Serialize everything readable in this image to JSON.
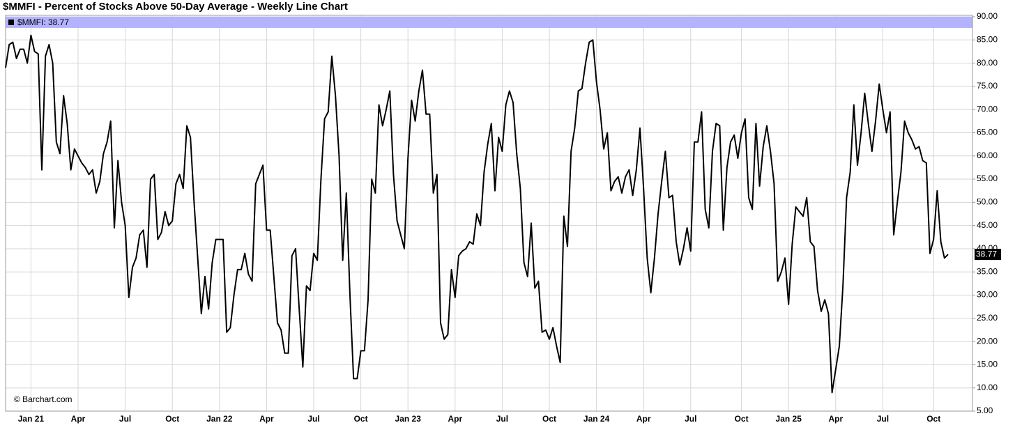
{
  "chart_data": {
    "type": "line",
    "title": "$MMFI - Percent of Stocks Above 50-Day Average - Weekly Line Chart",
    "legend": "$MMFI: 38.77",
    "copyright": "© Barchart.com",
    "categories": [
      null,
      null,
      null,
      null,
      null,
      null,
      null,
      "Jan 21",
      null,
      null,
      null,
      null,
      null,
      null,
      null,
      null,
      null,
      null,
      null,
      null,
      "Apr",
      null,
      null,
      null,
      null,
      null,
      null,
      null,
      null,
      null,
      null,
      null,
      null,
      "Jul",
      null,
      null,
      null,
      null,
      null,
      null,
      null,
      null,
      null,
      null,
      null,
      null,
      "Oct",
      null,
      null,
      null,
      null,
      null,
      null,
      null,
      null,
      null,
      null,
      null,
      null,
      "Jan 22",
      null,
      null,
      null,
      null,
      null,
      null,
      null,
      null,
      null,
      null,
      null,
      null,
      "Apr",
      null,
      null,
      null,
      null,
      null,
      null,
      null,
      null,
      null,
      null,
      null,
      null,
      "Jul",
      null,
      null,
      null,
      null,
      null,
      null,
      null,
      null,
      null,
      null,
      null,
      null,
      "Oct",
      null,
      null,
      null,
      null,
      null,
      null,
      null,
      null,
      null,
      null,
      null,
      null,
      "Jan 23",
      null,
      null,
      null,
      null,
      null,
      null,
      null,
      null,
      null,
      null,
      null,
      null,
      "Apr",
      null,
      null,
      null,
      null,
      null,
      null,
      null,
      null,
      null,
      null,
      null,
      null,
      "Jul",
      null,
      null,
      null,
      null,
      null,
      null,
      null,
      null,
      null,
      null,
      null,
      null,
      "Oct",
      null,
      null,
      null,
      null,
      null,
      null,
      null,
      null,
      null,
      null,
      null,
      null,
      "Jan 24",
      null,
      null,
      null,
      null,
      null,
      null,
      null,
      null,
      null,
      null,
      null,
      null,
      "Apr",
      null,
      null,
      null,
      null,
      null,
      null,
      null,
      null,
      null,
      null,
      null,
      null,
      "Jul",
      null,
      null,
      null,
      null,
      null,
      null,
      null,
      null,
      null,
      null,
      null,
      null,
      null,
      "Oct",
      null,
      null,
      null,
      null,
      null,
      null,
      null,
      null,
      null,
      null,
      null,
      null,
      "Jan 25",
      null,
      null,
      null,
      null,
      null,
      null,
      null,
      null,
      null,
      null,
      null,
      null,
      "Apr",
      null,
      null,
      null,
      null,
      null,
      null,
      null,
      null,
      null,
      null,
      null,
      null,
      "Jul",
      null,
      null,
      null,
      null,
      null,
      null,
      null,
      null,
      null,
      null,
      null,
      null,
      null,
      "Oct",
      null,
      null,
      null,
      null
    ],
    "series": [
      {
        "name": "$MMFI",
        "color": "#000000",
        "values": [
          79,
          84,
          84.5,
          81,
          83,
          83,
          80,
          86,
          82.5,
          82,
          57,
          81.5,
          84,
          80,
          63,
          60.5,
          73,
          67,
          57,
          61.5,
          60,
          58.5,
          57.5,
          56,
          57,
          52,
          54.5,
          60.5,
          63,
          67.5,
          44.5,
          59,
          50,
          45,
          29.5,
          36,
          38,
          43,
          44,
          36,
          55,
          56,
          42,
          43.5,
          48,
          45,
          46,
          54,
          56,
          53,
          66.5,
          64,
          50,
          38,
          26,
          34,
          27,
          37,
          42,
          42,
          42,
          22,
          23,
          30,
          35.5,
          35.5,
          39,
          34.5,
          33,
          54,
          56,
          58,
          44,
          44,
          34,
          24,
          22.5,
          17.5,
          17.5,
          38.5,
          40,
          27,
          14.5,
          32,
          31,
          39,
          37.5,
          55,
          68,
          69.5,
          81.5,
          73,
          60,
          37.5,
          52,
          30,
          12,
          12,
          18,
          18,
          29,
          55,
          52,
          71,
          66.5,
          70,
          74,
          56,
          46,
          43,
          40,
          59.5,
          72,
          67.5,
          74,
          78.5,
          69,
          69,
          52,
          56,
          24,
          20.5,
          21.5,
          35.5,
          29.5,
          38.5,
          39.5,
          40,
          41.5,
          41,
          47.5,
          45,
          56.5,
          62.5,
          67,
          52.5,
          64,
          61,
          71,
          74,
          71.5,
          60.5,
          53,
          37,
          34,
          45.5,
          31.5,
          33,
          22,
          22.5,
          20.5,
          23,
          19,
          15.5,
          47,
          40.5,
          61,
          66,
          74,
          74.5,
          80,
          84.5,
          85,
          76,
          70,
          61.5,
          65,
          52.5,
          54.5,
          55.5,
          52,
          55.5,
          57,
          51.5,
          57,
          66,
          53,
          38,
          30.5,
          38,
          47.5,
          54.5,
          61,
          51,
          51.5,
          41.5,
          36.5,
          40,
          44.5,
          39.5,
          63,
          63,
          69.5,
          48.5,
          44.5,
          61,
          67,
          66.5,
          44,
          57.5,
          63,
          64.5,
          59.5,
          65,
          68,
          51,
          48.5,
          67,
          53.5,
          62,
          66.5,
          61,
          54,
          33,
          35,
          38,
          28,
          41,
          49,
          48,
          47,
          51,
          41.5,
          40.5,
          31,
          26.5,
          29,
          26,
          9,
          14,
          19,
          32,
          51,
          56.5,
          71,
          58,
          65,
          73.5,
          67,
          61,
          67.5,
          75.5,
          70,
          65,
          69.5,
          43,
          50,
          56.5,
          67.5,
          65,
          63.5,
          61.5,
          62,
          59,
          58.5,
          39,
          42,
          52.5,
          41.5,
          38,
          38.77
        ]
      }
    ],
    "ylim": [
      5,
      90
    ],
    "yticks": [
      {
        "value": 5,
        "label": "5.00"
      },
      {
        "value": 10,
        "label": "10.00"
      },
      {
        "value": 15,
        "label": "15.00"
      },
      {
        "value": 20,
        "label": "20.00"
      },
      {
        "value": 25,
        "label": "25.00"
      },
      {
        "value": 30,
        "label": "30.00"
      },
      {
        "value": 35,
        "label": "35.00"
      },
      {
        "value": 40,
        "label": "40.00"
      },
      {
        "value": 45,
        "label": "45.00"
      },
      {
        "value": 50,
        "label": "50.00"
      },
      {
        "value": 55,
        "label": "55.00"
      },
      {
        "value": 60,
        "label": "60.00"
      },
      {
        "value": 65,
        "label": "65.00"
      },
      {
        "value": 70,
        "label": "70.00"
      },
      {
        "value": 75,
        "label": "75.00"
      },
      {
        "value": 80,
        "label": "80.00"
      },
      {
        "value": 85,
        "label": "85.00"
      },
      {
        "value": 90,
        "label": "90.00"
      }
    ],
    "grid": true,
    "legend_color": "#b3b3ff"
  }
}
